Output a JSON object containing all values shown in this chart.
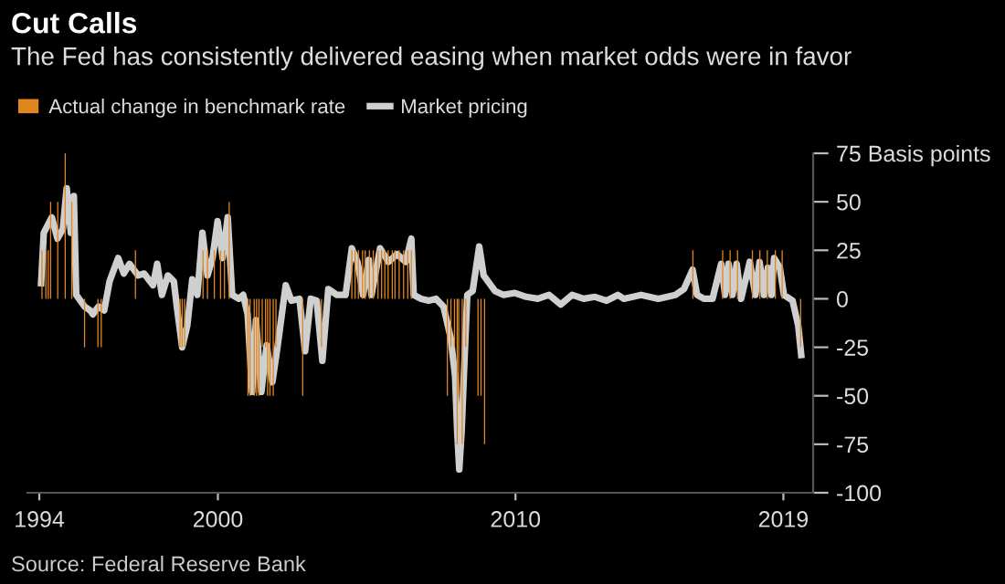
{
  "chart_data": {
    "type": "bar",
    "title": "Cut Calls",
    "subtitle": "The Fed has consistently delivered easing when market odds were in favor",
    "series": [
      {
        "name": "Actual change in benchmark rate",
        "type": "bar",
        "color": "#e0861e",
        "x": [
          1994.09,
          1994.22,
          1994.3,
          1994.38,
          1994.62,
          1994.87,
          1995.09,
          1995.52,
          1995.97,
          1996.08,
          1997.23,
          1998.73,
          1998.8,
          1998.88,
          1999.5,
          1999.65,
          1999.88,
          2000.09,
          2000.22,
          2000.38,
          2001.01,
          2001.08,
          2001.22,
          2001.3,
          2001.38,
          2001.49,
          2001.6,
          2001.67,
          2001.75,
          2001.86,
          2001.95,
          2002.85,
          2003.48,
          2004.5,
          2004.61,
          2004.72,
          2004.86,
          2004.95,
          2005.09,
          2005.22,
          2005.38,
          2005.5,
          2005.61,
          2005.72,
          2005.86,
          2005.95,
          2006.09,
          2006.24,
          2006.38,
          2006.5,
          2007.71,
          2007.83,
          2007.95,
          2008.04,
          2008.09,
          2008.21,
          2008.33,
          2008.74,
          2008.84,
          2008.96,
          2015.96,
          2016.96,
          2017.21,
          2017.46,
          2017.96,
          2018.21,
          2018.46,
          2018.73,
          2018.96,
          2019.58
        ],
        "values": [
          25,
          25,
          25,
          50,
          50,
          75,
          50,
          -25,
          -25,
          -25,
          25,
          -25,
          -25,
          -25,
          25,
          25,
          25,
          25,
          25,
          50,
          -50,
          -50,
          -50,
          -50,
          -50,
          -25,
          -25,
          -50,
          -50,
          -50,
          -25,
          -50,
          -25,
          25,
          25,
          25,
          25,
          25,
          25,
          25,
          25,
          25,
          25,
          25,
          25,
          25,
          25,
          25,
          25,
          25,
          -50,
          -25,
          -25,
          -75,
          -50,
          -75,
          -25,
          -50,
          -50,
          -75,
          25,
          25,
          25,
          25,
          25,
          25,
          25,
          25,
          25,
          -25
        ]
      },
      {
        "name": "Market pricing",
        "type": "line",
        "color": "#cfcfcf",
        "x": [
          1994.06,
          1994.15,
          1994.42,
          1994.61,
          1994.79,
          1994.92,
          1995.06,
          1995.16,
          1995.24,
          1995.52,
          1995.71,
          1995.8,
          1995.99,
          1996.18,
          1996.36,
          1996.65,
          1996.84,
          1997.03,
          1997.32,
          1997.52,
          1997.82,
          1997.96,
          1998.12,
          1998.32,
          1998.52,
          1998.62,
          1998.8,
          1998.97,
          1999.14,
          1999.31,
          1999.48,
          1999.65,
          1999.82,
          1999.99,
          2000.16,
          2000.33,
          2000.48,
          2000.7,
          2000.85,
          2001.0,
          2001.15,
          2001.28,
          2001.46,
          2001.64,
          2001.83,
          2002.01,
          2002.28,
          2002.47,
          2002.74,
          2002.93,
          2003.12,
          2003.32,
          2003.51,
          2003.71,
          2004.0,
          2004.29,
          2004.5,
          2004.69,
          2004.88,
          2005.07,
          2005.16,
          2005.45,
          2005.73,
          2006.02,
          2006.31,
          2006.5,
          2006.58,
          2006.83,
          2007.08,
          2007.33,
          2007.58,
          2007.82,
          2007.97,
          2008.04,
          2008.11,
          2008.19,
          2008.29,
          2008.38,
          2008.56,
          2008.78,
          2008.93,
          2009.12,
          2009.31,
          2009.6,
          2009.98,
          2010.36,
          2010.75,
          2011.13,
          2011.52,
          2011.9,
          2012.29,
          2012.67,
          2013.06,
          2013.44,
          2013.64,
          2014.22,
          2014.8,
          2015.37,
          2015.66,
          2015.95,
          2016.1,
          2016.33,
          2016.62,
          2016.91,
          2017.04,
          2017.16,
          2017.29,
          2017.43,
          2017.58,
          2017.87,
          2018.06,
          2018.2,
          2018.35,
          2018.48,
          2018.6,
          2018.69,
          2018.88,
          2019.02,
          2019.31,
          2019.5,
          2019.6
        ],
        "values": [
          8,
          34,
          42,
          31,
          36,
          57,
          34,
          53,
          2,
          -4,
          -6,
          -8,
          -4,
          -6,
          9,
          21,
          13,
          18,
          12,
          13,
          7,
          18,
          2,
          12,
          9,
          -4,
          -25,
          -14,
          10,
          2,
          34,
          12,
          21,
          40,
          21,
          42,
          2,
          0,
          2,
          -8,
          -48,
          -11,
          -48,
          -24,
          -43,
          -24,
          7,
          -1,
          0,
          -27,
          0,
          -1,
          -32,
          5,
          2,
          2,
          26,
          19,
          2,
          20,
          2,
          26,
          19,
          23,
          19,
          31,
          2,
          0,
          -1,
          0,
          -4,
          -20,
          -40,
          -68,
          -88,
          -68,
          -30,
          2,
          4,
          27,
          12,
          8,
          4,
          2,
          3,
          1,
          0,
          2,
          -3,
          2,
          0,
          1,
          -1,
          2,
          0,
          2,
          0,
          2,
          5,
          15,
          2,
          0,
          0,
          18,
          2,
          18,
          2,
          18,
          0,
          19,
          2,
          19,
          2,
          16,
          2,
          21,
          16,
          2,
          -1,
          -14,
          -29
        ]
      }
    ],
    "xlim": [
      1993.6,
      2020.0
    ],
    "xticks": [
      1994,
      2000,
      2010,
      2019
    ],
    "ylim": [
      -100,
      75
    ],
    "yticks": [
      {
        "value": 75,
        "label": "75 Basis points"
      },
      50,
      25,
      0,
      -25,
      -50,
      -75,
      -100
    ],
    "legend": "top left",
    "annotations": [
      "Source: Federal Reserve Bank"
    ]
  }
}
